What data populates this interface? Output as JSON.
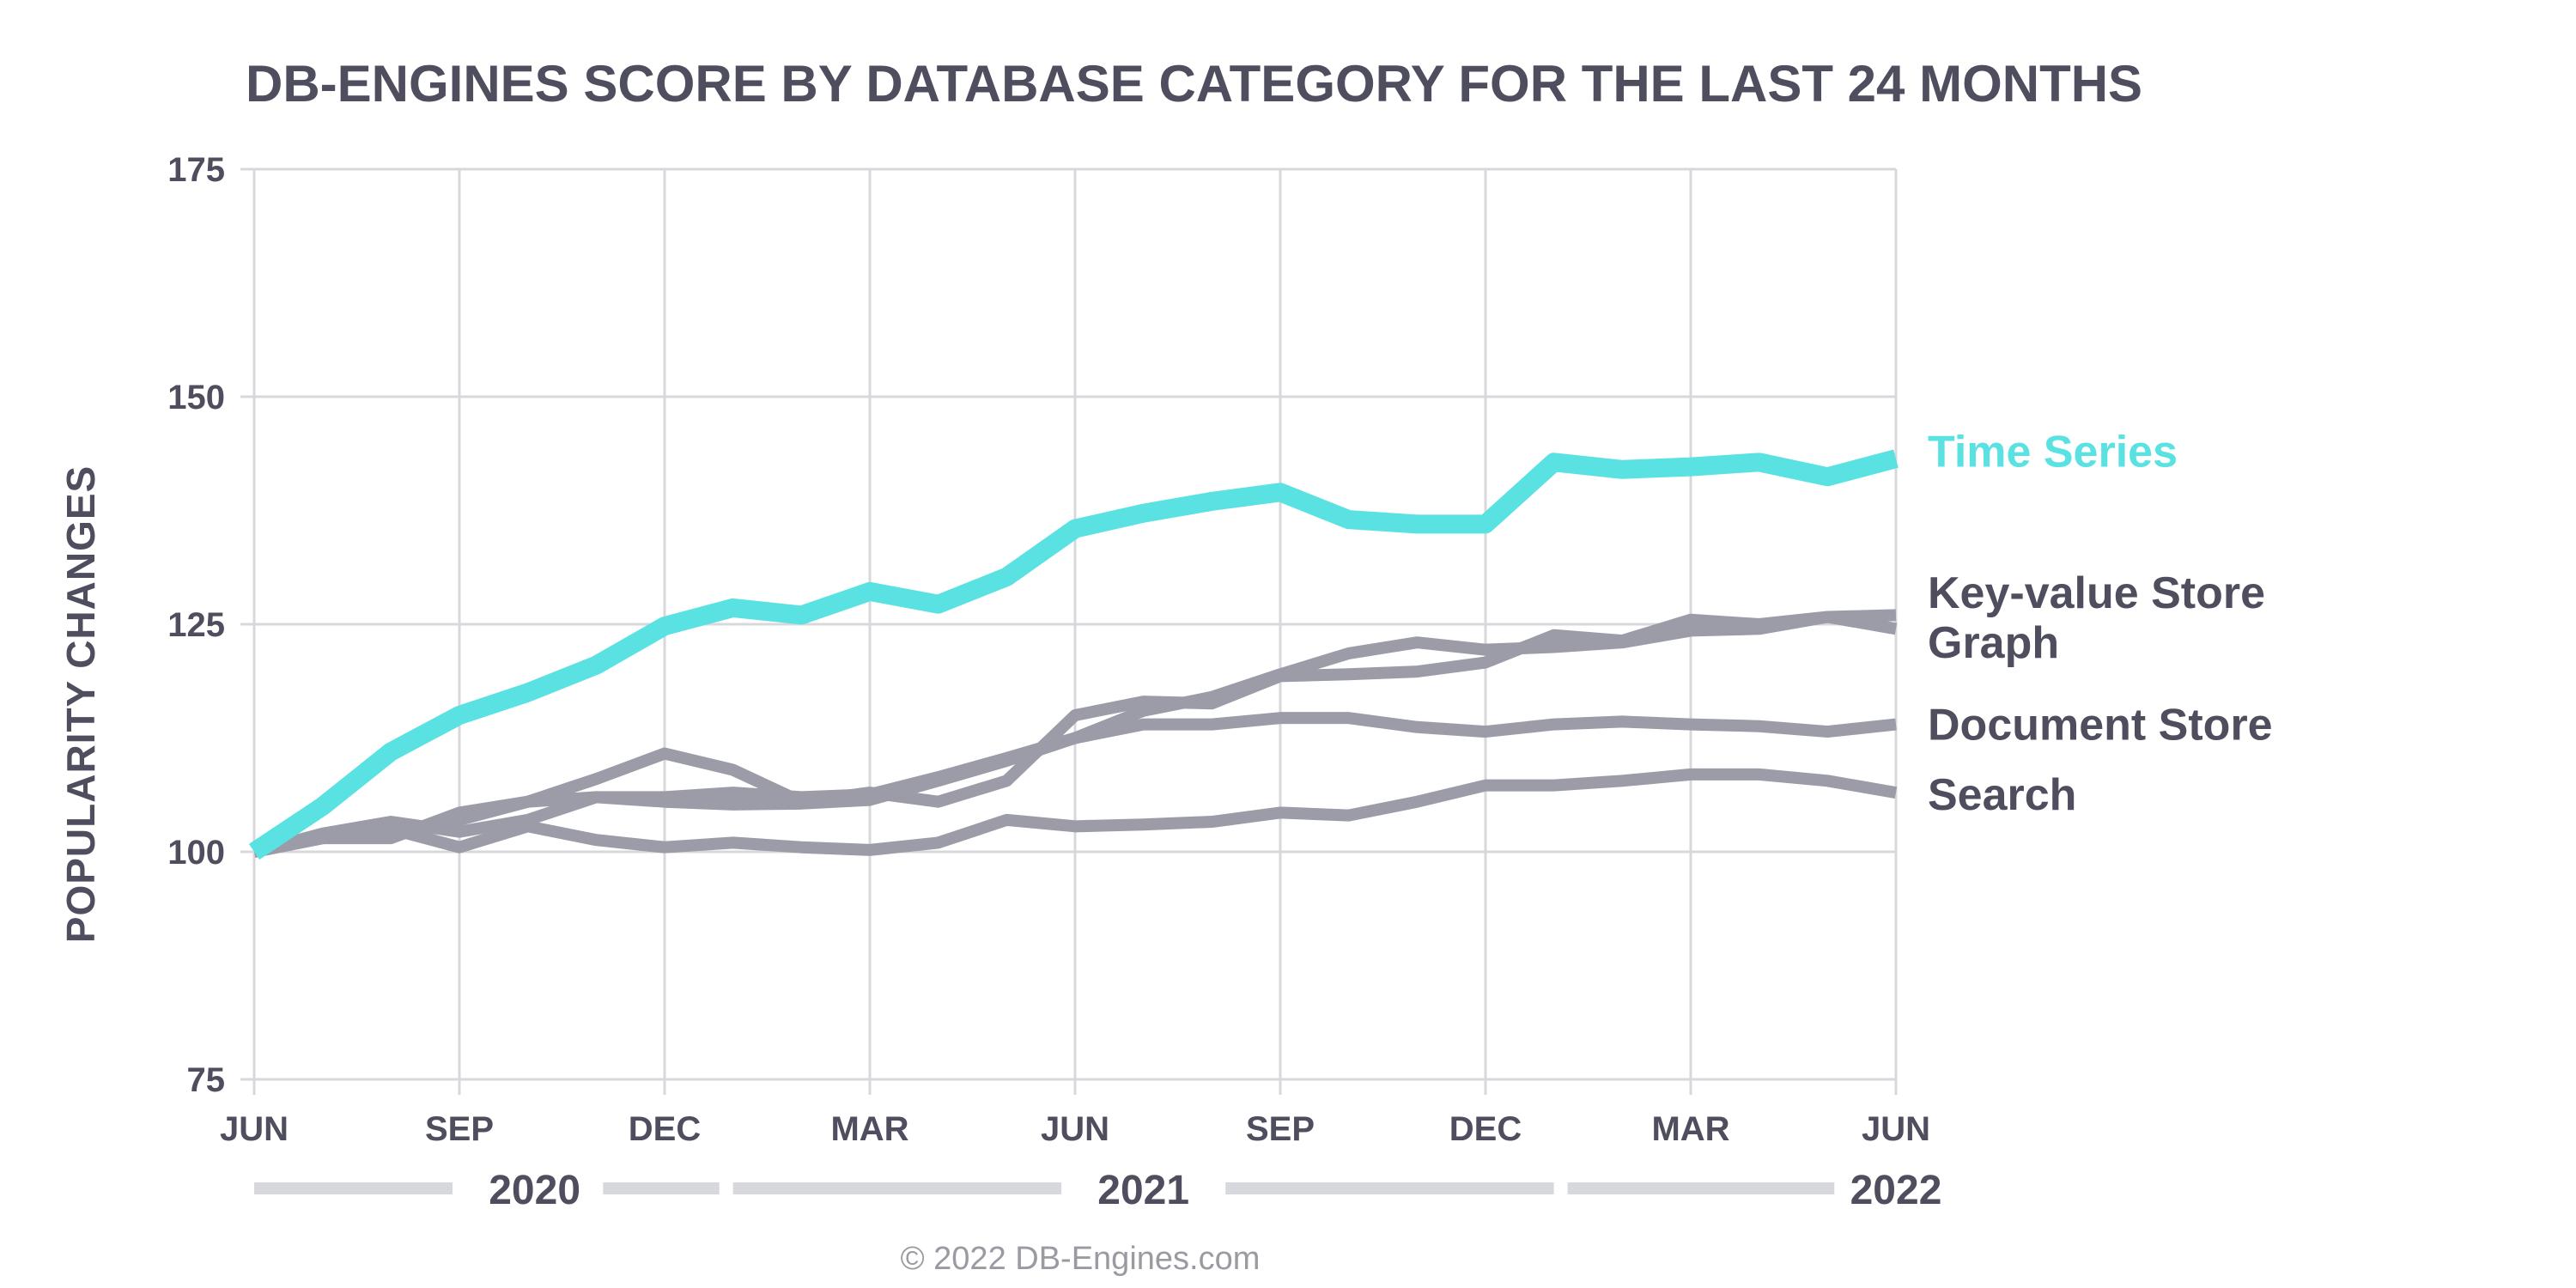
{
  "colors": {
    "text": "#4e4e5e",
    "grid": "#d8d8dc",
    "muted": "#9b9ca8",
    "accent": "#5ae2e2",
    "band": "#d7d7de",
    "credit": "#9a9aa2"
  },
  "credit": "© 2022 DB-Engines.com",
  "chart_data": {
    "type": "line",
    "title": "DB-ENGINES SCORE BY DATABASE CATEGORY FOR THE LAST 24 MONTHS",
    "xlabel": "",
    "ylabel": "POPULARITY CHANGES",
    "ylim": [
      75,
      175
    ],
    "yticks": [
      75,
      100,
      125,
      150,
      175
    ],
    "xlim": [
      0,
      24
    ],
    "x": [
      0,
      1,
      2,
      3,
      4,
      5,
      6,
      7,
      8,
      9,
      10,
      11,
      12,
      13,
      14,
      15,
      16,
      17,
      18,
      19,
      20,
      21,
      22,
      23,
      24
    ],
    "xticks": [
      {
        "x": 0,
        "label": "JUN"
      },
      {
        "x": 3,
        "label": "SEP"
      },
      {
        "x": 6,
        "label": "DEC"
      },
      {
        "x": 9,
        "label": "MAR"
      },
      {
        "x": 12,
        "label": "JUN"
      },
      {
        "x": 15,
        "label": "SEP"
      },
      {
        "x": 18,
        "label": "DEC"
      },
      {
        "x": 21,
        "label": "MAR"
      },
      {
        "x": 24,
        "label": "JUN"
      }
    ],
    "years": [
      {
        "label": "2020",
        "x": 4.1
      },
      {
        "label": "2021",
        "x": 13.0
      },
      {
        "label": "2022",
        "x": 24.0
      }
    ],
    "year_bands": [
      [
        0,
        2.9
      ],
      [
        5.1,
        6.8
      ],
      [
        7.0,
        11.8
      ],
      [
        14.2,
        19.0
      ],
      [
        19.2,
        23.1
      ]
    ],
    "grid": true,
    "series": [
      {
        "name": "Time Series",
        "highlight": true,
        "label_y": 144,
        "values": [
          100,
          105,
          111,
          115,
          117.5,
          120.5,
          124.8,
          126.8,
          126,
          128.6,
          127.2,
          130.2,
          135.5,
          137.2,
          138.5,
          139.5,
          136.5,
          136,
          136,
          142.8,
          142,
          142.3,
          142.8,
          141.2,
          143.2
        ]
      },
      {
        "name": "Key-value Store",
        "highlight": false,
        "label_y": 128.5,
        "values": [
          100,
          101.5,
          102,
          103.5,
          105.5,
          108,
          110.8,
          109,
          105.5,
          106.5,
          105.5,
          107.8,
          115,
          116.5,
          116.3,
          119.3,
          119.5,
          119.8,
          120.8,
          123.8,
          123.2,
          125.5,
          125,
          125.8,
          126
        ]
      },
      {
        "name": "Graph",
        "highlight": false,
        "label_y": 123,
        "values": [
          100,
          102,
          103.3,
          102.2,
          103.5,
          106,
          106,
          106.5,
          106,
          106.3,
          108.2,
          110.3,
          112.5,
          115.5,
          117,
          119.5,
          121.8,
          123,
          122.2,
          122.5,
          123,
          124.3,
          124.5,
          125.8,
          124.5
        ]
      },
      {
        "name": "Document Store",
        "highlight": false,
        "label_y": 114,
        "values": [
          100,
          101.5,
          101.5,
          104.3,
          105.5,
          106,
          105.5,
          105.2,
          105.3,
          105.7,
          107.8,
          110,
          112.5,
          114,
          114,
          114.7,
          114.7,
          113.7,
          113.2,
          114,
          114.3,
          114,
          113.8,
          113.2,
          114
        ]
      },
      {
        "name": "Search",
        "highlight": false,
        "label_y": 106.3,
        "values": [
          100,
          101.5,
          102.5,
          100.5,
          102.8,
          101.3,
          100.5,
          101,
          100.5,
          100.2,
          101,
          103.5,
          102.8,
          103,
          103.3,
          104.3,
          104,
          105.5,
          107.3,
          107.3,
          107.8,
          108.5,
          108.5,
          107.8,
          106.5
        ]
      }
    ]
  }
}
